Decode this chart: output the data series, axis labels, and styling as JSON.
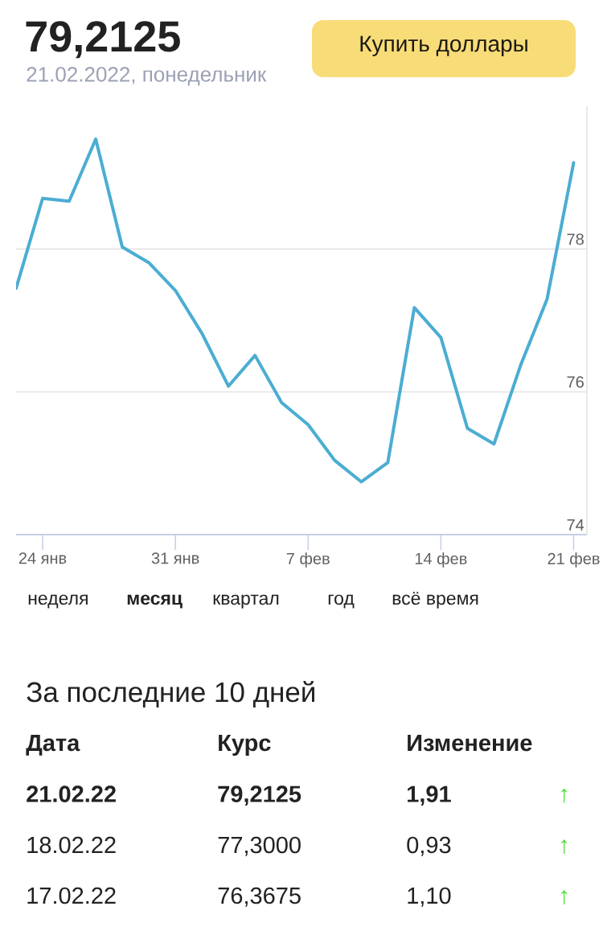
{
  "chart_data": {
    "type": "line",
    "title": "79,2125",
    "subtitle": "21.02.2022, понедельник",
    "categories": [
      null,
      "24 янв",
      null,
      null,
      null,
      null,
      "31 янв",
      null,
      null,
      null,
      null,
      "7 фев",
      null,
      null,
      null,
      null,
      "14 фев",
      null,
      null,
      null,
      null,
      "21 фев"
    ],
    "values": [
      77.45,
      78.71,
      78.67,
      79.54,
      78.03,
      77.81,
      77.42,
      76.82,
      76.08,
      76.51,
      75.85,
      75.54,
      75.04,
      74.74,
      75.01,
      77.18,
      76.76,
      75.49,
      75.27,
      76.37,
      77.3,
      79.21
    ],
    "color": "#4badd2",
    "ylim": [
      74,
      80
    ],
    "yticks": [
      74,
      76,
      78
    ],
    "grid": "y",
    "annotations": [
      "Купить доллары",
      "неделя",
      "месяц",
      "квартал",
      "год",
      "всё время",
      "За последние 10 дней",
      "Дата",
      "Курс",
      "Изменение",
      "21.02.22",
      "79,2125",
      "1,91",
      "↑",
      "18.02.22",
      "77,3000",
      "0,93",
      "↑",
      "17.02.22",
      "76,3675",
      "1,10",
      "↑"
    ]
  }
}
